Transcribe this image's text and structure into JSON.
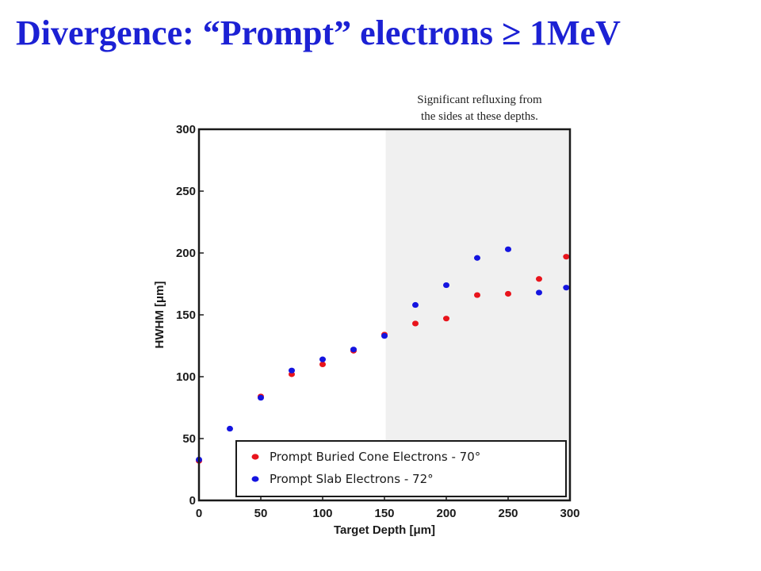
{
  "slide": {
    "title": "Divergence: “Prompt” electrons ≥ 1MeV"
  },
  "annotation": {
    "line1": "Significant refluxing from",
    "line2": "the sides at these depths."
  },
  "chart_data": {
    "type": "scatter",
    "title": "",
    "xlabel": "Target Depth [μm]",
    "ylabel": "HWHM [μm]",
    "xlim": [
      0,
      300
    ],
    "ylim": [
      0,
      300
    ],
    "xticks": [
      0,
      50,
      100,
      150,
      200,
      250,
      300
    ],
    "yticks": [
      0,
      50,
      100,
      150,
      200,
      250,
      300
    ],
    "grid": false,
    "legend_position": "bottom-right",
    "shaded_region": {
      "x_start": 151,
      "x_end": 300,
      "color": "#f0f0f0"
    },
    "series": [
      {
        "name": "Prompt Buried Cone Electrons - 70°",
        "color": "#e8141c",
        "points": [
          [
            0,
            32
          ],
          [
            50,
            84
          ],
          [
            75,
            102
          ],
          [
            100,
            110
          ],
          [
            125,
            121
          ],
          [
            150,
            134
          ],
          [
            175,
            143
          ],
          [
            200,
            147
          ],
          [
            225,
            166
          ],
          [
            250,
            167
          ],
          [
            275,
            179
          ],
          [
            297,
            197
          ]
        ]
      },
      {
        "name": "Prompt Slab Electrons - 72°",
        "color": "#1414e0",
        "points": [
          [
            0,
            33
          ],
          [
            25,
            58
          ],
          [
            50,
            83
          ],
          [
            75,
            105
          ],
          [
            100,
            114
          ],
          [
            125,
            122
          ],
          [
            150,
            133
          ],
          [
            175,
            158
          ],
          [
            200,
            174
          ],
          [
            225,
            196
          ],
          [
            250,
            203
          ],
          [
            275,
            168
          ],
          [
            297,
            172
          ]
        ]
      }
    ]
  }
}
